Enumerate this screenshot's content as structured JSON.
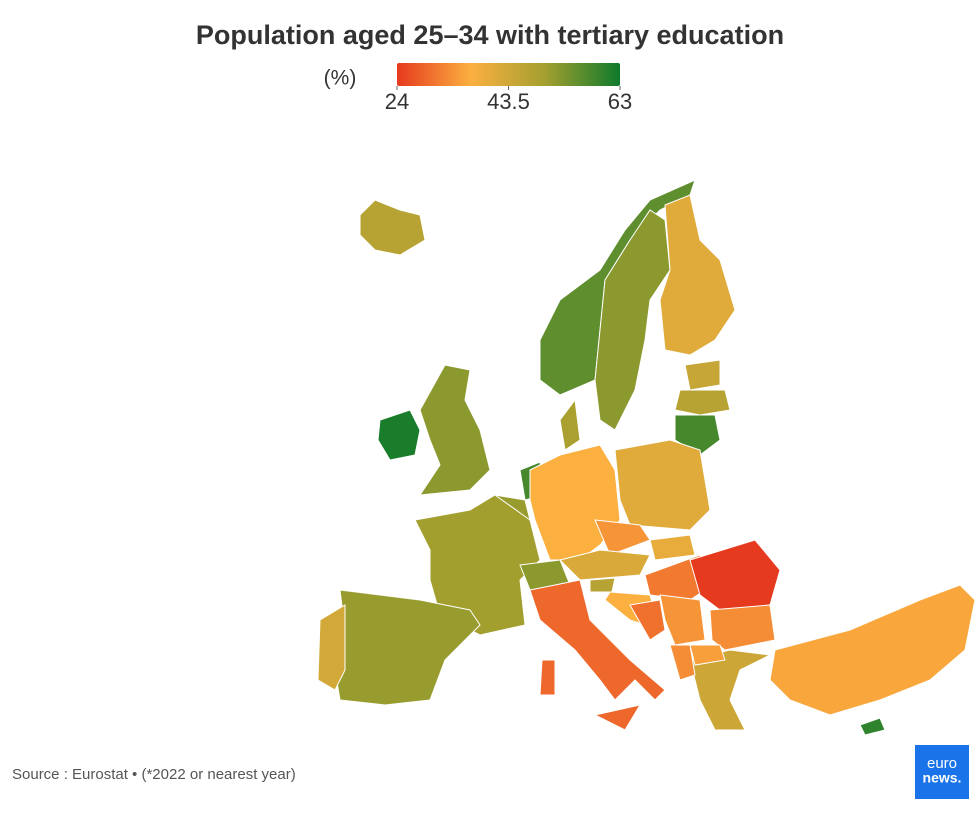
{
  "chart_data": {
    "type": "choropleth",
    "title": "Population aged 25–34 with tertiary education",
    "legend_title": "(%)",
    "legend_ticks": [
      24,
      43.5,
      63
    ],
    "colorscale": [
      "#e63a1e",
      "#fbb040",
      "#a39f2f",
      "#0e7a2c"
    ],
    "values": [
      47,
      62,
      52,
      56,
      52,
      41,
      45,
      47,
      58,
      49,
      58,
      51,
      37,
      41,
      34,
      40,
      42,
      31,
      24,
      50,
      52,
      51,
      43,
      29,
      47,
      37,
      34,
      30,
      33,
      44,
      35,
      33,
      36,
      60
    ]
  },
  "source": "Source : Eurostat • (*2022 or nearest year)",
  "logo": [
    "euro",
    "news."
  ]
}
